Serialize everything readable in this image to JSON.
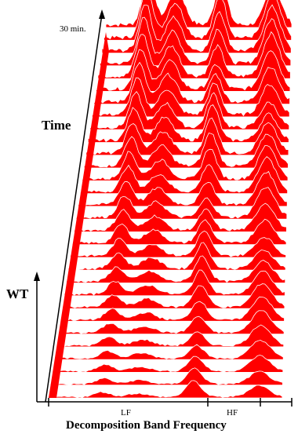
{
  "chart_data": {
    "type": "area",
    "title": "",
    "xlabel": "Decomposition Band Frequency",
    "ylabel": "WT",
    "zlabel": "Time",
    "time_max_label": "30 min.",
    "x_bands": [
      "LF",
      "HF"
    ],
    "fill_color": "#ff0000",
    "line_color": "#ffffff",
    "axis_color": "#000000",
    "n_traces": 30,
    "peaks": [
      {
        "band": "LF",
        "position": 0.23,
        "relative_height": 1.0
      },
      {
        "band": "LF",
        "position": 0.38,
        "relative_height": 0.7
      },
      {
        "band": "HF",
        "position": 0.62,
        "relative_height": 0.85
      },
      {
        "band": "HF",
        "position": 0.9,
        "relative_height": 0.9
      }
    ]
  }
}
